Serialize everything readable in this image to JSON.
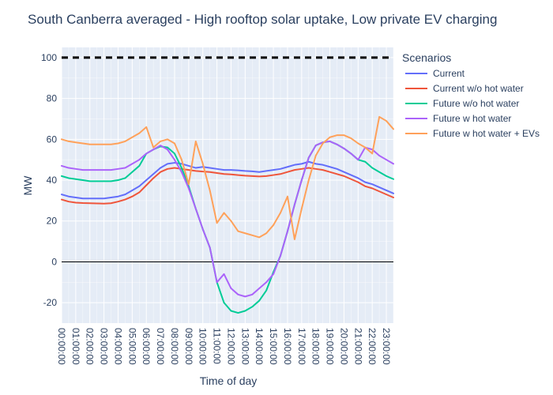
{
  "chart_data": {
    "type": "line",
    "title": "South Canberra averaged - High rooftop solar uptake, Low private EV charging",
    "xlabel": "Time of day",
    "ylabel": "MW",
    "ylim": [
      -30,
      105
    ],
    "yticks": [
      -20,
      0,
      20,
      40,
      60,
      80,
      100
    ],
    "grid": true,
    "legend_title": "Scenarios",
    "legend_position": "right",
    "background": "#e5ecf6",
    "xtick_labels": [
      "00:00:00",
      "01:00:00",
      "02:00:00",
      "03:00:00",
      "04:00:00",
      "05:00:00",
      "06:00:00",
      "07:00:00",
      "08:00:00",
      "09:00:00",
      "10:00:00",
      "11:00:00",
      "12:00:00",
      "13:00:00",
      "14:00:00",
      "15:00:00",
      "16:00:00",
      "17:00:00",
      "18:00:00",
      "19:00:00",
      "20:00:00",
      "21:00:00",
      "22:00:00",
      "23:00:00"
    ],
    "x_hours": [
      0,
      0.5,
      1,
      1.5,
      2,
      2.5,
      3,
      3.5,
      4,
      4.5,
      5,
      5.5,
      6,
      6.5,
      7,
      7.5,
      8,
      8.5,
      9,
      9.5,
      10,
      10.5,
      11,
      11.5,
      12,
      12.5,
      13,
      13.5,
      14,
      14.5,
      15,
      15.5,
      16,
      16.5,
      17,
      17.5,
      18,
      18.5,
      19,
      19.5,
      20,
      20.5,
      21,
      21.5,
      22,
      22.5,
      23,
      23.5
    ],
    "reference_line": {
      "y": 100,
      "color": "#000000",
      "style": "dash"
    },
    "zero_line": {
      "y": 0,
      "color": "#000000"
    },
    "series": [
      {
        "name": "Current",
        "color": "#636efa",
        "values": [
          33,
          32,
          31.5,
          31,
          31,
          31,
          31,
          31.5,
          32,
          33,
          35,
          37,
          40,
          43,
          46,
          48,
          48.5,
          48,
          47,
          46,
          46.5,
          46,
          45.5,
          45,
          45,
          44.8,
          44.5,
          44.3,
          44,
          44.5,
          45,
          45.5,
          46.5,
          47.5,
          48,
          49,
          48,
          47.5,
          46.5,
          45.5,
          44,
          42.5,
          41,
          39,
          38,
          36.5,
          35,
          33.5
        ]
      },
      {
        "name": "Current w/o hot water",
        "color": "#ef553b",
        "values": [
          30.5,
          29.5,
          29,
          28.8,
          28.7,
          28.6,
          28.5,
          28.7,
          29.5,
          30.5,
          32,
          34,
          37.5,
          41,
          44,
          45.5,
          46,
          45.5,
          45,
          44.5,
          44.2,
          44,
          43.5,
          43,
          42.8,
          42.5,
          42.2,
          42,
          41.8,
          42,
          42.5,
          43,
          44,
          45,
          45.5,
          46,
          45.5,
          45,
          44,
          43,
          42,
          40.5,
          39,
          37,
          36,
          34.5,
          33,
          31.5
        ]
      },
      {
        "name": "Future w/o hot water",
        "color": "#00cc96",
        "values": [
          42,
          41,
          40.5,
          40,
          39.5,
          39.5,
          39.5,
          39.5,
          40,
          41,
          44,
          47,
          53,
          55,
          56.5,
          56,
          53,
          46,
          37,
          26,
          16,
          7,
          -10,
          -20,
          -24,
          -25,
          -24,
          -22,
          -19,
          -14,
          -5,
          3,
          15,
          28,
          40,
          51,
          57,
          58.5,
          59,
          57.5,
          55.5,
          53,
          50,
          49,
          46,
          44,
          42,
          40.5
        ]
      },
      {
        "name": "Future w hot water",
        "color": "#ab63fa",
        "values": [
          47,
          46,
          45.5,
          45,
          45,
          45,
          45,
          45,
          45.5,
          46,
          48,
          50,
          53,
          55,
          57,
          55,
          50,
          44,
          36,
          26,
          16,
          7,
          -10,
          -6,
          -13,
          -16,
          -17,
          -16,
          -13,
          -10,
          -6,
          3,
          15,
          28,
          40,
          51,
          57,
          58.5,
          59,
          57.5,
          55.5,
          53,
          50,
          56,
          55,
          52,
          50,
          48
        ]
      },
      {
        "name": "Future w hot water + EVs",
        "color": "#ffa15a",
        "values": [
          60,
          59,
          58.5,
          58,
          57.5,
          57.5,
          57.5,
          57.5,
          58,
          59,
          61,
          63,
          66,
          56,
          59,
          60,
          58,
          50,
          38,
          59,
          48,
          35,
          19,
          24,
          20,
          15,
          14,
          13,
          12,
          14,
          18,
          24,
          32,
          11,
          26,
          40,
          52,
          58,
          61,
          62,
          62,
          60.5,
          58,
          56,
          53,
          71,
          69,
          65
        ]
      }
    ]
  }
}
